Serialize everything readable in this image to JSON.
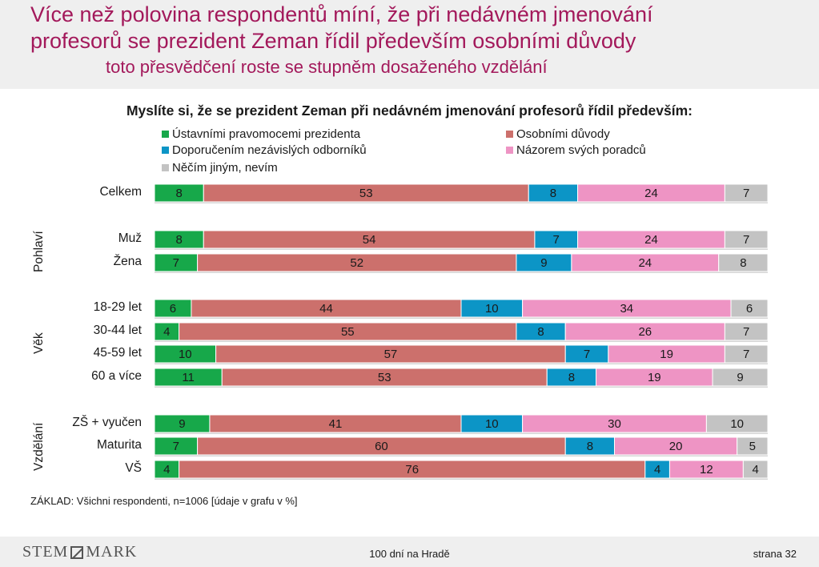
{
  "header": {
    "title_line1": "Více než polovina respondentů míní, že při nedávném jmenování",
    "title_line2": "profesorů se prezident Zeman řídil především osobními důvody",
    "subtitle": "toto přesvědčení roste se stupněm dosaženého vzdělání"
  },
  "chart_data": {
    "type": "bar",
    "orientation": "horizontal",
    "stacked": true,
    "percent_stacked": true,
    "title": "Myslíte si, že se prezident Zeman při nedávném jmenování profesorů řídil především:",
    "legend_position": "top",
    "categories": [
      "Celkem",
      "Muž",
      "Žena",
      "18-29 let",
      "30-44 let",
      "45-59 let",
      "60 a více",
      "ZŠ + vyučen",
      "Maturita",
      "VŠ"
    ],
    "groups": [
      {
        "name": "",
        "rows": [
          0
        ]
      },
      {
        "name": "Pohlaví",
        "rows": [
          1,
          2
        ]
      },
      {
        "name": "Věk",
        "rows": [
          3,
          4,
          5,
          6
        ]
      },
      {
        "name": "Vzdělání",
        "rows": [
          7,
          8,
          9
        ]
      }
    ],
    "series": [
      {
        "name": "Ústavními pravomocemi prezidenta",
        "color": "#17a84a",
        "values": [
          8,
          8,
          7,
          6,
          4,
          10,
          11,
          9,
          7,
          4
        ]
      },
      {
        "name": "Osobními důvody",
        "color": "#cc706c",
        "values": [
          53,
          54,
          52,
          44,
          55,
          57,
          53,
          41,
          60,
          76
        ]
      },
      {
        "name": "Doporučením nezávislých odborníků",
        "color": "#0c95c6",
        "values": [
          8,
          7,
          9,
          10,
          8,
          7,
          8,
          10,
          8,
          4
        ]
      },
      {
        "name": "Názorem svých poradců",
        "color": "#ee94c4",
        "values": [
          24,
          24,
          24,
          34,
          26,
          19,
          19,
          30,
          20,
          12
        ]
      },
      {
        "name": "Něčím jiným, nevím",
        "color": "#c3c3c3",
        "values": [
          7,
          7,
          8,
          6,
          7,
          7,
          9,
          10,
          5,
          4
        ]
      }
    ],
    "xlim": [
      0,
      100
    ],
    "grid": false
  },
  "note": "ZÁKLAD: Všichni respondenti, n=1006 [údaje v grafu v %]",
  "footer": {
    "logo_text_left": "STEM",
    "logo_text_right": "MARK",
    "center": "100 dní na Hradě",
    "page": "strana 32"
  }
}
